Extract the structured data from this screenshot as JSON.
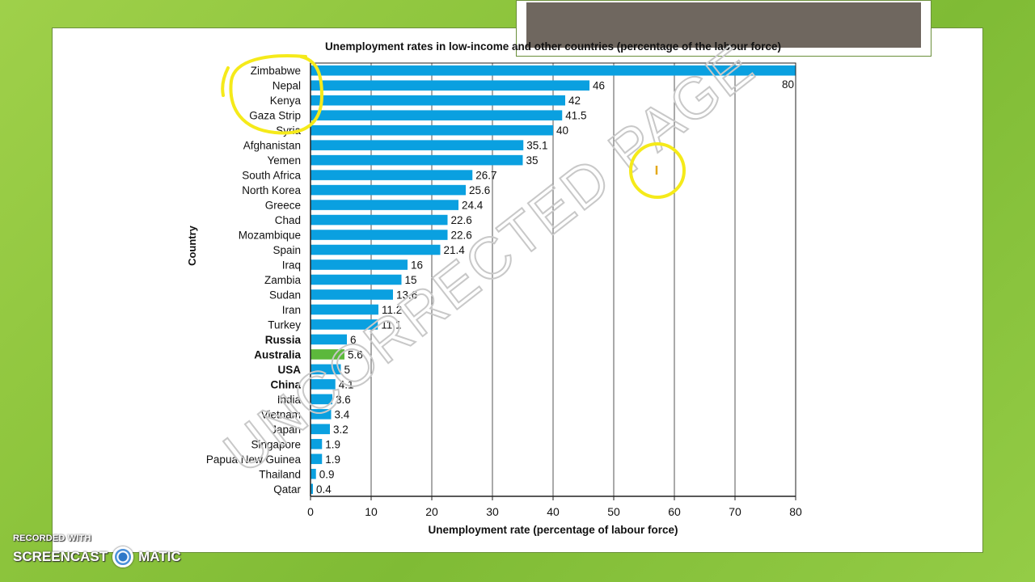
{
  "chart_data": {
    "type": "bar",
    "orientation": "horizontal",
    "title": "Unemployment rates in low-income and other countries (percentage of the labour force)",
    "xlabel": "Unemployment rate (percentage of labour force)",
    "ylabel": "Country",
    "xlim": [
      0,
      80
    ],
    "xticks": [
      0,
      10,
      20,
      30,
      40,
      50,
      60,
      70,
      80
    ],
    "grid": "vertical",
    "categories": [
      "Zimbabwe",
      "Nepal",
      "Kenya",
      "Gaza Strip",
      "Syria",
      "Afghanistan",
      "Yemen",
      "South Africa",
      "North Korea",
      "Greece",
      "Chad",
      "Mozambique",
      "Spain",
      "Iraq",
      "Zambia",
      "Sudan",
      "Iran",
      "Turkey",
      "Russia",
      "Australia",
      "USA",
      "China",
      "India",
      "Vietnam",
      "Japan",
      "Singapore",
      "Papua New Guinea",
      "Thailand",
      "Qatar"
    ],
    "values": [
      80,
      46,
      42,
      41.5,
      40,
      35.1,
      35,
      26.7,
      25.6,
      24.4,
      22.6,
      22.6,
      21.4,
      16,
      15,
      13.6,
      11.2,
      11.1,
      6,
      5.6,
      5,
      4.1,
      3.6,
      3.4,
      3.2,
      1.9,
      1.9,
      0.9,
      0.4
    ],
    "value_labels": [
      "80",
      "46",
      "42",
      "41.5",
      "40",
      "35.1",
      "35",
      "26.7",
      "25.6",
      "24.4",
      "22.6",
      "22.6",
      "21.4",
      "16",
      "15",
      "13.6",
      "11.2",
      "11.1",
      "6",
      "5.6",
      "5",
      "4.1",
      "3.6",
      "3.4",
      "3.2",
      "1.9",
      "1.9",
      "0.9",
      "0.4"
    ],
    "bold_categories": [
      "Russia",
      "Australia",
      "USA",
      "China"
    ],
    "highlight_category": "Australia",
    "colors": {
      "bar": "#0aa0e0",
      "highlight": "#5cb83c",
      "grid": "#555555",
      "annotation": "#f5ea1a"
    }
  },
  "overlay": {
    "watermark": "UNCORRECTED PAGE",
    "recorder_small": "RECORDED WITH",
    "recorder_big_left": "SCREENCAST",
    "recorder_big_right": "MATIC"
  }
}
